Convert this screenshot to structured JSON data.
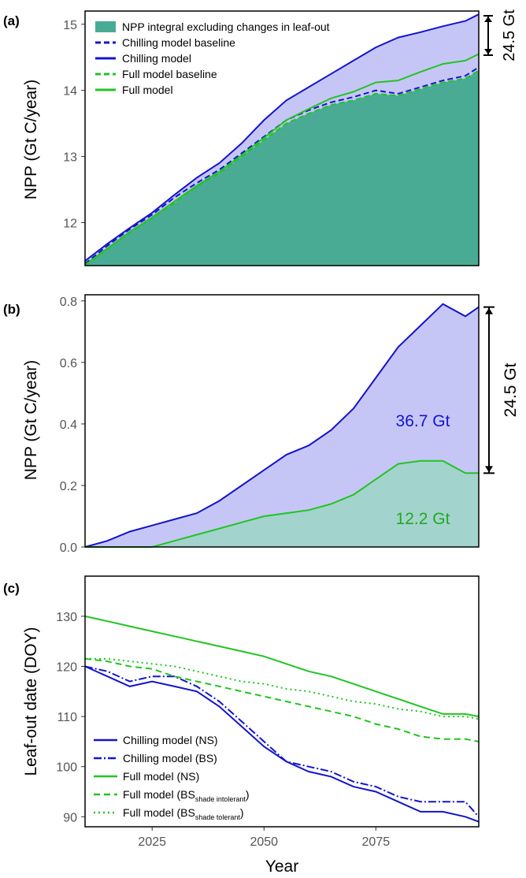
{
  "chart_data": [
    {
      "panel_label": "(a)",
      "type": "area",
      "ylabel": "NPP (Gt C/year)",
      "xlim": [
        2010,
        2098
      ],
      "ylim": [
        11.35,
        15.2
      ],
      "yticks": [
        12,
        13,
        14,
        15
      ],
      "colors": {
        "blue": "#1414cc",
        "green": "#22c422",
        "integral_fill": "#4aab95",
        "diff_fill": "#c6c6f6"
      },
      "legend_placement": "top-left",
      "legend": [
        {
          "label": "NPP integral excluding changes in leaf-out",
          "style": "fill"
        },
        {
          "label": "Chilling model baseline",
          "style": "dashed-blue"
        },
        {
          "label": "Chilling model",
          "style": "solid-blue"
        },
        {
          "label": "Full model baseline",
          "style": "dashed-green"
        },
        {
          "label": "Full model",
          "style": "solid-green"
        }
      ],
      "bracket_label": "24.5 Gt",
      "x": [
        2010,
        2015,
        2020,
        2025,
        2030,
        2035,
        2040,
        2045,
        2050,
        2055,
        2060,
        2065,
        2070,
        2075,
        2080,
        2085,
        2090,
        2095,
        2098
      ],
      "series": [
        {
          "name": "Chilling model baseline",
          "values": [
            11.38,
            11.65,
            11.9,
            12.12,
            12.38,
            12.6,
            12.8,
            13.05,
            13.3,
            13.55,
            13.7,
            13.82,
            13.9,
            14.0,
            13.95,
            14.05,
            14.15,
            14.22,
            14.35
          ]
        },
        {
          "name": "Chilling model",
          "values": [
            11.42,
            11.68,
            11.92,
            12.15,
            12.42,
            12.68,
            12.9,
            13.2,
            13.55,
            13.85,
            14.05,
            14.25,
            14.45,
            14.65,
            14.8,
            14.88,
            14.97,
            15.05,
            15.15
          ]
        },
        {
          "name": "Full model baseline",
          "values": [
            11.35,
            11.6,
            11.85,
            12.07,
            12.3,
            12.55,
            12.75,
            13.0,
            13.25,
            13.5,
            13.65,
            13.78,
            13.85,
            13.95,
            13.92,
            14.02,
            14.12,
            14.18,
            14.3
          ]
        },
        {
          "name": "Full model",
          "values": [
            11.36,
            11.61,
            11.86,
            12.08,
            12.32,
            12.56,
            12.77,
            13.02,
            13.28,
            13.55,
            13.72,
            13.88,
            13.98,
            14.12,
            14.15,
            14.28,
            14.4,
            14.45,
            14.55
          ]
        }
      ]
    },
    {
      "panel_label": "(b)",
      "type": "area",
      "ylabel": "NPP (Gt C/year)",
      "xlim": [
        2010,
        2098
      ],
      "ylim": [
        0,
        0.82
      ],
      "yticks": [
        0.0,
        0.2,
        0.4,
        0.6,
        0.8
      ],
      "tick_labels": [
        "0.0",
        "0.2",
        "0.4",
        "0.6",
        "0.8"
      ],
      "bracket_label": "24.5 Gt",
      "annotations": [
        {
          "text": "36.7 Gt",
          "color": "blue"
        },
        {
          "text": "12.2 Gt",
          "color": "green"
        }
      ],
      "x": [
        2010,
        2015,
        2020,
        2025,
        2030,
        2035,
        2040,
        2045,
        2050,
        2055,
        2060,
        2065,
        2070,
        2075,
        2080,
        2085,
        2090,
        2095,
        2098
      ],
      "series": [
        {
          "name": "Chilling model",
          "values": [
            0.0,
            0.02,
            0.05,
            0.07,
            0.09,
            0.11,
            0.15,
            0.2,
            0.25,
            0.3,
            0.33,
            0.38,
            0.45,
            0.55,
            0.65,
            0.72,
            0.79,
            0.75,
            0.78
          ]
        },
        {
          "name": "Full model",
          "values": [
            0.0,
            0.0,
            0.0,
            0.0,
            0.02,
            0.04,
            0.06,
            0.08,
            0.1,
            0.11,
            0.12,
            0.14,
            0.17,
            0.22,
            0.27,
            0.28,
            0.28,
            0.24,
            0.24
          ]
        }
      ]
    },
    {
      "panel_label": "(c)",
      "type": "line",
      "ylabel": "Leaf-out date (DOY)",
      "xlabel": "Year",
      "xlim": [
        2010,
        2098
      ],
      "ylim": [
        88,
        138
      ],
      "xticks": [
        2025,
        2050,
        2075
      ],
      "yticks": [
        90,
        100,
        110,
        120,
        130
      ],
      "legend_placement": "bottom-left",
      "legend": [
        {
          "label": "Chilling model (NS)",
          "style": "solid-blue"
        },
        {
          "label": "Chilling model (BS)",
          "style": "dashdot-blue"
        },
        {
          "label": "Full model (NS)",
          "style": "solid-green"
        },
        {
          "label": "Full model (BS",
          "sub": "shade intolerant",
          "close": ")",
          "style": "dashed-green"
        },
        {
          "label": "Full model (BS",
          "sub": "shade tolerant",
          "close": ")",
          "style": "dotted-green"
        }
      ],
      "x": [
        2010,
        2015,
        2020,
        2025,
        2030,
        2035,
        2040,
        2045,
        2050,
        2055,
        2060,
        2065,
        2070,
        2075,
        2080,
        2085,
        2090,
        2095,
        2098
      ],
      "series": [
        {
          "name": "Chilling model (NS)",
          "values": [
            120,
            118,
            116,
            117,
            116,
            115,
            112,
            108,
            104,
            101,
            99,
            98,
            96,
            95,
            93,
            91,
            91,
            90,
            89
          ]
        },
        {
          "name": "Chilling model (BS)",
          "values": [
            120,
            119,
            117,
            118,
            118,
            116,
            113,
            109,
            105,
            101,
            100,
            99,
            97,
            96,
            94,
            93,
            93,
            93,
            90
          ]
        },
        {
          "name": "Full model (NS)",
          "values": [
            130,
            129,
            128,
            127,
            126,
            125,
            124,
            123,
            122,
            120.5,
            119,
            118,
            116.5,
            115,
            113.5,
            112,
            110.5,
            110.5,
            110
          ]
        },
        {
          "name": "Full model (BS shade intolerant)",
          "values": [
            121.5,
            121,
            120,
            119.5,
            118,
            117,
            116,
            115,
            114,
            113,
            112,
            111,
            110,
            108.5,
            107.5,
            106,
            105.5,
            105.5,
            105
          ]
        },
        {
          "name": "Full model (BS shade tolerant)",
          "values": [
            121.5,
            121.5,
            121,
            120.5,
            120,
            119,
            118,
            117,
            116.5,
            115.5,
            115,
            114,
            113,
            112.5,
            111.5,
            111,
            110,
            110,
            109.5
          ]
        }
      ]
    }
  ]
}
